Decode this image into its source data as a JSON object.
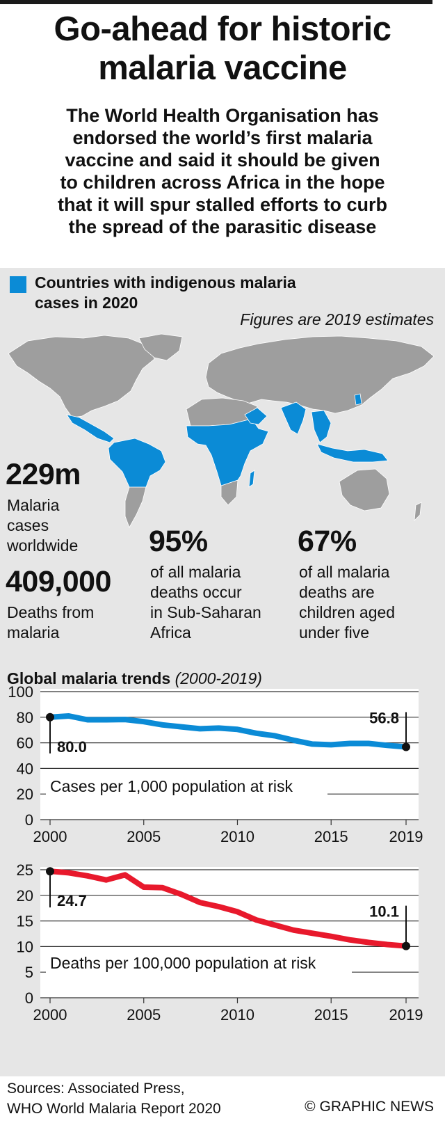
{
  "header": {
    "title_lines": [
      "Go-ahead for historic",
      "malaria vaccine"
    ],
    "subtitle_lines": [
      "The World Health Organisation has",
      "endorsed the world’s first malaria",
      "vaccine and said it should be given",
      "to children across Africa in the hope",
      "that it will spur stalled efforts to curb",
      "the spread of the parasitic disease"
    ]
  },
  "map": {
    "legend_lines": [
      "Countries with indigenous malaria",
      "cases in 2020"
    ],
    "note": "Figures are 2019 estimates",
    "colors": {
      "malaria": "#0b8bd6",
      "land": "#9e9e9e",
      "background": "#e6e6e6"
    }
  },
  "stats": {
    "cases": {
      "value": "229m",
      "desc": [
        "Malaria",
        "cases",
        "worldwide"
      ]
    },
    "deaths": {
      "value": "409,000",
      "desc": [
        "Deaths from",
        "malaria"
      ]
    },
    "subsaharan": {
      "value": "95%",
      "desc": [
        "of all malaria",
        "deaths occur",
        "in Sub-Saharan",
        "Africa"
      ]
    },
    "children": {
      "value": "67%",
      "desc": [
        "of all malaria",
        "deaths are",
        "children aged",
        "under five"
      ]
    }
  },
  "trends": {
    "title": "Global malaria trends",
    "period": "(2000-2019)"
  },
  "chart_data": [
    {
      "type": "line",
      "title": "Cases per 1,000 population at risk",
      "x": [
        2000,
        2001,
        2002,
        2003,
        2004,
        2005,
        2006,
        2007,
        2008,
        2009,
        2010,
        2011,
        2012,
        2013,
        2014,
        2015,
        2016,
        2017,
        2018,
        2019
      ],
      "values": [
        80.0,
        81.0,
        78.0,
        78.0,
        78.2,
        76.5,
        74.0,
        72.5,
        71.0,
        71.5,
        70.5,
        67.5,
        65.5,
        62.0,
        59.0,
        58.5,
        59.5,
        59.5,
        58.0,
        56.8
      ],
      "xticks": [
        2000,
        2005,
        2010,
        2015,
        2019
      ],
      "yticks": [
        0,
        20,
        40,
        60,
        80,
        100
      ],
      "ylim": [
        0,
        100
      ],
      "start_label": "80.0",
      "end_label": "56.8",
      "color": "#0b8bd6",
      "grid": true
    },
    {
      "type": "line",
      "title": "Deaths per 100,000 population at risk",
      "x": [
        2000,
        2001,
        2002,
        2003,
        2004,
        2005,
        2006,
        2007,
        2008,
        2009,
        2010,
        2011,
        2012,
        2013,
        2014,
        2015,
        2016,
        2017,
        2018,
        2019
      ],
      "values": [
        24.7,
        24.4,
        23.8,
        23.0,
        24.0,
        21.6,
        21.5,
        20.2,
        18.6,
        17.8,
        16.8,
        15.2,
        14.2,
        13.2,
        12.6,
        12.0,
        11.3,
        10.8,
        10.4,
        10.1
      ],
      "xticks": [
        2000,
        2005,
        2010,
        2015,
        2019
      ],
      "yticks": [
        0,
        5,
        10,
        15,
        20,
        25
      ],
      "ylim": [
        0,
        25
      ],
      "start_label": "24.7",
      "end_label": "10.1",
      "color": "#e8192c",
      "grid": true
    }
  ],
  "footer": {
    "sources_lines": [
      "Sources: Associated Press,",
      "WHO World Malaria Report 2020"
    ],
    "credit": "© GRAPHIC NEWS"
  }
}
